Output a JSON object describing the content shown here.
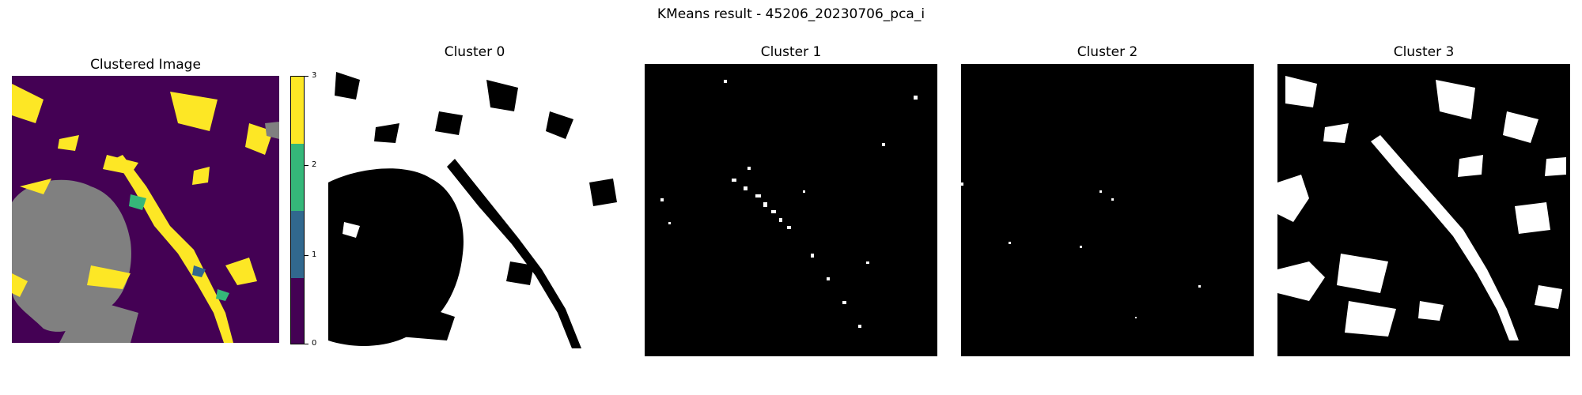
{
  "figure": {
    "suptitle": "KMeans result - 45206_20230706_pca_i"
  },
  "panels": [
    {
      "title": "Clustered Image"
    },
    {
      "title": "Cluster 0"
    },
    {
      "title": "Cluster 1"
    },
    {
      "title": "Cluster 2"
    },
    {
      "title": "Cluster 3"
    }
  ],
  "colorbar": {
    "ticks": [
      "0",
      "1",
      "2",
      "3"
    ],
    "colors": [
      "#440154",
      "#31688e",
      "#35b779",
      "#fde725"
    ]
  },
  "colors": {
    "cluster0_display": "#808080",
    "cluster1": "#31688e",
    "cluster2": "#35b779",
    "cluster3": "#fde725",
    "background": "#440154",
    "mask_on": "#ffffff",
    "mask_off": "#000000"
  }
}
